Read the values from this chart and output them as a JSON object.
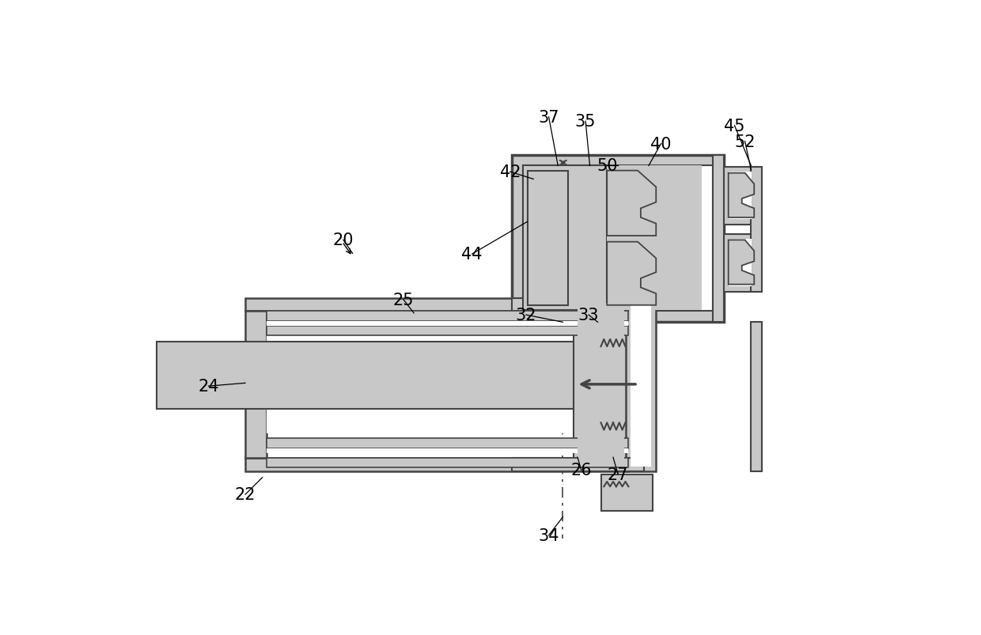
{
  "bg": "#ffffff",
  "G": "#c8c8c8",
  "B": "#444444",
  "W": "#ffffff",
  "LG": "#e2e2e2",
  "DG": "#b0b0b0"
}
